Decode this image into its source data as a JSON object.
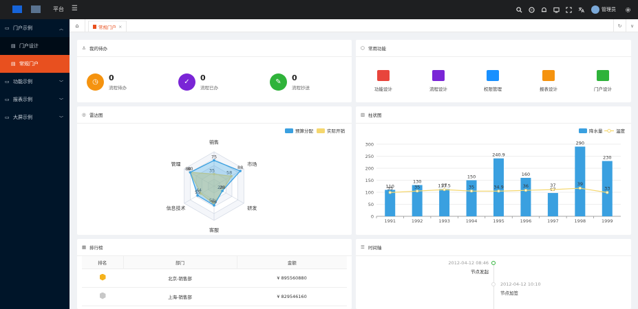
{
  "header": {
    "brand": "平台",
    "username": "管理员",
    "icons": [
      "search-icon",
      "message-icon",
      "bell-icon",
      "screen-icon",
      "fullscreen-icon",
      "translate-icon",
      "settings-icon"
    ]
  },
  "sidebar": {
    "items": [
      {
        "label": "门户示例",
        "icon": "portal-icon",
        "expanded": true
      },
      {
        "label": "门户设计",
        "icon": "doc-icon",
        "sub": true
      },
      {
        "label": "常规门户",
        "icon": "doc-icon",
        "sub": true,
        "active": true
      },
      {
        "label": "功能示例",
        "icon": "feature-icon"
      },
      {
        "label": "报表示例",
        "icon": "report-icon"
      },
      {
        "label": "大屏示例",
        "icon": "screen-icon"
      }
    ]
  },
  "tabs": {
    "active_tab": "常规门户"
  },
  "todo": {
    "title": "我的待办",
    "items": [
      {
        "count": "0",
        "label": "流程待办",
        "color": "#f5930f"
      },
      {
        "count": "0",
        "label": "流程已办",
        "color": "#7a25d6"
      },
      {
        "count": "0",
        "label": "流程抄送",
        "color": "#2fb33a"
      }
    ]
  },
  "functions": {
    "title": "常用功能",
    "items": [
      {
        "label": "功能设计",
        "color": "#e8453c",
        "icon": "form-icon"
      },
      {
        "label": "流程设计",
        "color": "#7a25d6",
        "icon": "flow-icon"
      },
      {
        "label": "权限管理",
        "color": "#1890ff",
        "icon": "lock-icon"
      },
      {
        "label": "报表设计",
        "color": "#f5930f",
        "icon": "chart-icon"
      },
      {
        "label": "门户设计",
        "color": "#2fb33a",
        "icon": "portal-icon"
      }
    ]
  },
  "radar": {
    "title": "雷达图"
  },
  "bar": {
    "title": "柱状图"
  },
  "chart_data": [
    {
      "type": "radar",
      "indicators": [
        "销售",
        "市场",
        "研发",
        "客服",
        "信息技术",
        "管理"
      ],
      "max": 100,
      "series": [
        {
          "name": "预算分配",
          "values": [
            75,
            88,
            28,
            56,
            55,
            80
          ],
          "color": "#3aa0e0"
        },
        {
          "name": "实际开销",
          "values": [
            35,
            58,
            28,
            52,
            44,
            80
          ],
          "color": "#f5d76e"
        }
      ]
    },
    {
      "type": "bar",
      "categories": [
        "1991",
        "1992",
        "1993",
        "1994",
        "1995",
        "1996",
        "1997",
        "1998",
        "1999"
      ],
      "ylim": [
        0,
        300
      ],
      "yticks": [
        0,
        50,
        100,
        150,
        200,
        250,
        300
      ],
      "series": [
        {
          "name": "降水量",
          "type": "bar",
          "values": [
            110,
            130,
            113.5,
            150,
            240.9,
            160,
            97,
            290,
            230
          ],
          "color": "#3aa0e0"
        },
        {
          "name": "温度",
          "type": "line",
          "values": [
            33,
            35,
            37,
            35,
            34.9,
            36,
            37,
            39,
            33
          ],
          "color": "#f5d76e"
        }
      ]
    }
  ],
  "ranking": {
    "title": "排行榜",
    "columns": [
      "排名",
      "部门",
      "金额"
    ],
    "rows": [
      {
        "dept": "北京-销售部",
        "amount": "¥ 895560880",
        "medal": "#f5b21b"
      },
      {
        "dept": "上海-销售部",
        "amount": "¥ 829546160",
        "medal": "#c8c8c8"
      }
    ]
  },
  "timeline": {
    "title": "时间轴",
    "items": [
      {
        "time": "2012-04-12 08:46",
        "label": "节点发起"
      },
      {
        "time": "2012-04-12 10:10",
        "label": "节点加签"
      }
    ]
  }
}
